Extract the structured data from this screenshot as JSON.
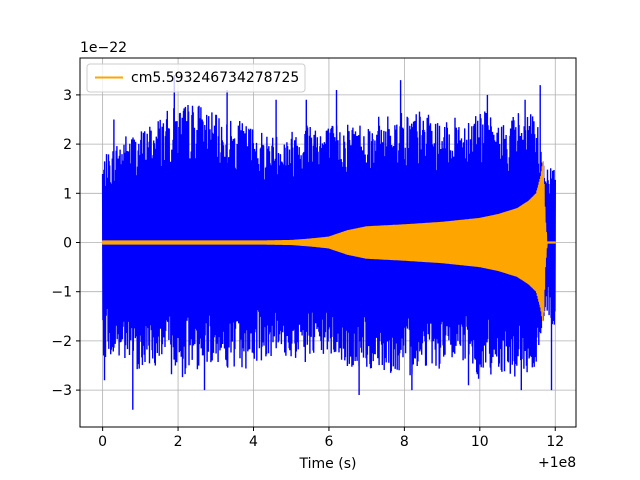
{
  "chart_data": {
    "type": "line",
    "xlabel": "Time (s)",
    "ylabel": "",
    "y_multiplier_label": "1e−22",
    "x_offset_label": "+1e8",
    "xlim": [
      -0.6,
      12.55
    ],
    "ylim": [
      -3.75,
      3.75
    ],
    "x_ticks": [
      0,
      2,
      4,
      6,
      8,
      10,
      12
    ],
    "x_tick_labels": [
      "0",
      "2",
      "4",
      "6",
      "8",
      "10",
      "12"
    ],
    "y_ticks": [
      -3,
      -2,
      -1,
      0,
      1,
      2,
      3
    ],
    "y_tick_labels": [
      "−3",
      "−2",
      "−1",
      "0",
      "1",
      "2",
      "3"
    ],
    "grid": true,
    "legend_position": "upper-left",
    "colors": {
      "noise": "#0000ff",
      "signal": "#ffa500"
    },
    "series": [
      {
        "name": "",
        "kind": "noisy strain (band, approximate envelope)",
        "color": "#0000ff",
        "x_range": [
          0,
          12.0
        ],
        "upper_envelope": [
          [
            0.0,
            1.7
          ],
          [
            0.5,
            2.2
          ],
          [
            1.0,
            2.3
          ],
          [
            1.5,
            2.6
          ],
          [
            2.0,
            2.8
          ],
          [
            2.5,
            2.9
          ],
          [
            3.0,
            2.6
          ],
          [
            3.5,
            2.5
          ],
          [
            4.0,
            2.4
          ],
          [
            4.5,
            2.2
          ],
          [
            5.0,
            2.3
          ],
          [
            5.5,
            2.6
          ],
          [
            6.0,
            2.4
          ],
          [
            6.5,
            2.5
          ],
          [
            7.0,
            2.5
          ],
          [
            7.5,
            2.6
          ],
          [
            8.0,
            2.7
          ],
          [
            8.5,
            2.7
          ],
          [
            9.0,
            2.4
          ],
          [
            9.5,
            2.6
          ],
          [
            10.0,
            2.8
          ],
          [
            10.5,
            2.4
          ],
          [
            11.0,
            2.7
          ],
          [
            11.5,
            2.6
          ],
          [
            11.75,
            1.4
          ],
          [
            12.0,
            1.9
          ]
        ],
        "lower_envelope": [
          [
            0.0,
            -2.3
          ],
          [
            0.5,
            -2.5
          ],
          [
            1.0,
            -2.6
          ],
          [
            1.5,
            -2.5
          ],
          [
            2.0,
            -2.8
          ],
          [
            2.5,
            -2.6
          ],
          [
            3.0,
            -2.4
          ],
          [
            3.5,
            -2.7
          ],
          [
            4.0,
            -2.5
          ],
          [
            4.5,
            -2.3
          ],
          [
            5.0,
            -2.4
          ],
          [
            5.5,
            -2.5
          ],
          [
            6.0,
            -2.3
          ],
          [
            6.5,
            -2.6
          ],
          [
            7.0,
            -2.6
          ],
          [
            7.5,
            -2.6
          ],
          [
            8.0,
            -2.8
          ],
          [
            8.5,
            -2.5
          ],
          [
            9.0,
            -2.6
          ],
          [
            9.5,
            -2.4
          ],
          [
            10.0,
            -2.8
          ],
          [
            10.5,
            -2.6
          ],
          [
            11.0,
            -2.8
          ],
          [
            11.5,
            -2.6
          ],
          [
            11.75,
            -1.4
          ],
          [
            12.0,
            -1.9
          ]
        ],
        "spikes": [
          [
            0.8,
            -3.4
          ],
          [
            1.9,
            3.4
          ],
          [
            0.3,
            2.5
          ],
          [
            3.3,
            3.1
          ],
          [
            2.7,
            -3.0
          ],
          [
            6.2,
            3.1
          ],
          [
            6.8,
            -3.1
          ],
          [
            7.9,
            3.3
          ],
          [
            8.2,
            -3.0
          ],
          [
            10.2,
            3.0
          ],
          [
            11.1,
            -3.0
          ],
          [
            11.6,
            3.2
          ],
          [
            11.2,
            2.9
          ],
          [
            4.6,
            2.9
          ],
          [
            5.4,
            2.9
          ],
          [
            9.7,
            -2.9
          ],
          [
            11.9,
            -3.0
          ],
          [
            0.05,
            -2.8
          ]
        ]
      },
      {
        "name": "cm5.593246734278725",
        "kind": "chirp waveform (approximate envelope)",
        "color": "#ffa500",
        "envelope": [
          [
            0.0,
            0.04
          ],
          [
            4.0,
            0.04
          ],
          [
            5.0,
            0.05
          ],
          [
            5.5,
            0.08
          ],
          [
            6.0,
            0.12
          ],
          [
            6.5,
            0.25
          ],
          [
            7.0,
            0.33
          ],
          [
            8.0,
            0.37
          ],
          [
            9.0,
            0.42
          ],
          [
            10.0,
            0.5
          ],
          [
            10.5,
            0.58
          ],
          [
            11.0,
            0.7
          ],
          [
            11.3,
            0.85
          ],
          [
            11.5,
            1.0
          ],
          [
            11.62,
            1.35
          ],
          [
            11.68,
            1.65
          ],
          [
            11.73,
            0.5
          ],
          [
            11.78,
            0.02
          ],
          [
            12.0,
            0.02
          ]
        ]
      }
    ]
  }
}
